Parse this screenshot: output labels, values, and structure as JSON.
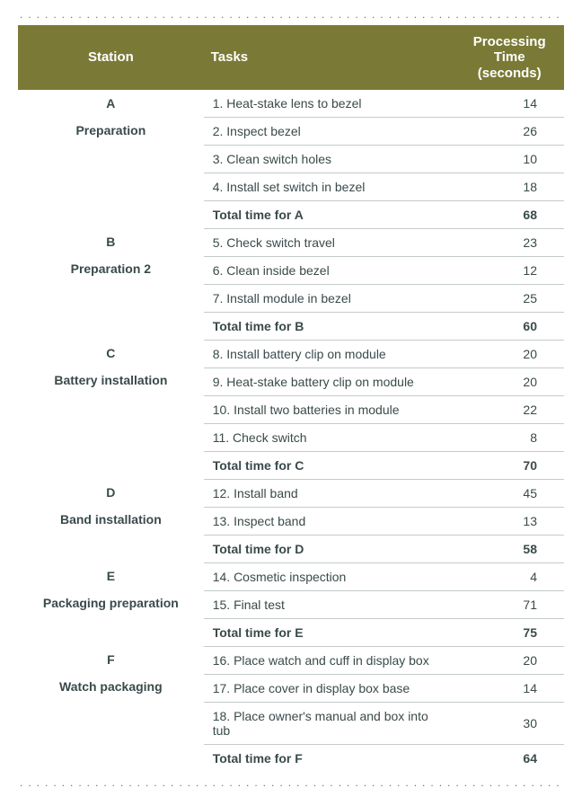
{
  "colors": {
    "header_bg": "#7a7a36",
    "text": "#3a4a4a",
    "rule": "#c4cbcb",
    "background": "#ffffff",
    "dots": "#6f7070"
  },
  "font": {
    "title_size_pt": 15,
    "body_size_pt": 14,
    "family": "Arial"
  },
  "dots": "....................................................................................",
  "headers": {
    "station": "Station",
    "tasks": "Tasks",
    "time": "Processing Time (seconds)"
  },
  "sections": [
    {
      "letter": "A",
      "name": "Preparation",
      "rows": [
        {
          "task": "1. Heat-stake lens to bezel",
          "time": 14
        },
        {
          "task": "2. Inspect bezel",
          "time": 26
        },
        {
          "task": "3. Clean switch holes",
          "time": 10
        },
        {
          "task": "4. Install set switch in bezel",
          "time": 18
        }
      ],
      "total_label": "Total time for A",
      "total": 68
    },
    {
      "letter": "B",
      "name": "Preparation 2",
      "rows": [
        {
          "task": "5. Check switch travel",
          "time": 23
        },
        {
          "task": "6. Clean inside bezel",
          "time": 12
        },
        {
          "task": "7. Install module in bezel",
          "time": 25
        }
      ],
      "total_label": "Total time for B",
      "total": 60
    },
    {
      "letter": "C",
      "name": "Battery installation",
      "rows": [
        {
          "task": "8. Install battery clip on module",
          "time": 20
        },
        {
          "task": "9. Heat-stake battery clip on module",
          "time": 20
        },
        {
          "task": "10. Install two batteries in module",
          "time": 22
        },
        {
          "task": "11. Check switch",
          "time": 8
        }
      ],
      "total_label": "Total time for C",
      "total": 70
    },
    {
      "letter": "D",
      "name": "Band installation",
      "rows": [
        {
          "task": "12. Install band",
          "time": 45
        },
        {
          "task": "13. Inspect band",
          "time": 13
        }
      ],
      "total_label": "Total time for D",
      "total": 58
    },
    {
      "letter": "E",
      "name": "Packaging preparation",
      "rows": [
        {
          "task": "14. Cosmetic inspection",
          "time": 4
        },
        {
          "task": "15. Final test",
          "time": 71
        }
      ],
      "total_label": "Total time for E",
      "total": 75
    },
    {
      "letter": "F",
      "name": "Watch packaging",
      "rows": [
        {
          "task": "16. Place watch and cuff in display box",
          "time": 20
        },
        {
          "task": "17. Place cover in display box base",
          "time": 14
        },
        {
          "task": "18. Place owner's manual and box into tub",
          "time": 30
        }
      ],
      "total_label": "Total time for F",
      "total": 64
    }
  ]
}
